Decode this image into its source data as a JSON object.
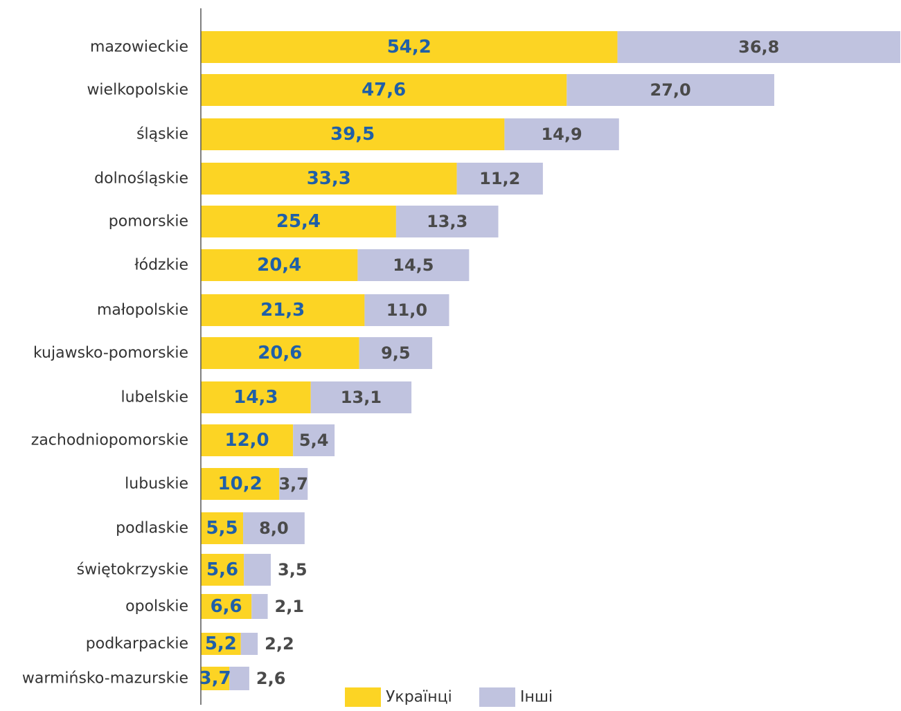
{
  "chart_data": {
    "type": "bar",
    "orientation": "horizontal",
    "stacked": true,
    "categories": [
      "mazowieckie",
      "wielkopolskie",
      "śląskie",
      "dolnośląskie",
      "pomorskie",
      "łódzkie",
      "małopolskie",
      "kujawsko-pomorskie",
      "lubelskie",
      "zachodniopomorskie",
      "lubuskie",
      "podlaskie",
      "świętokrzyskie",
      "opolskie",
      "podkarpackie",
      "warmińsko-mazurskie"
    ],
    "series": [
      {
        "name": "Українці",
        "color": "#fcd424",
        "label_color": "#1f5fa8",
        "values": [
          54.2,
          47.6,
          39.5,
          33.3,
          25.4,
          20.4,
          21.3,
          20.6,
          14.3,
          12.0,
          10.2,
          5.5,
          5.6,
          6.6,
          5.2,
          3.7
        ],
        "labels": [
          "54,2",
          "47,6",
          "39,5",
          "33,3",
          "25,4",
          "20,4",
          "21,3",
          "20,6",
          "14,3",
          "12,0",
          "10,2",
          "5,5",
          "5,6",
          "6,6",
          "5,2",
          "3,7"
        ]
      },
      {
        "name": "Інші",
        "color": "#c0c3df",
        "label_color": "#4a4a4a",
        "values": [
          36.8,
          27.0,
          14.9,
          11.2,
          13.3,
          14.5,
          11.0,
          9.5,
          13.1,
          5.4,
          3.7,
          8.0,
          3.5,
          2.1,
          2.2,
          2.6
        ],
        "labels": [
          "36,8",
          "27,0",
          "14,9",
          "11,2",
          "13,3",
          "14,5",
          "11,0",
          "9,5",
          "13,1",
          "5,4",
          "3,7",
          "8,0",
          "3,5",
          "2,1",
          "2,2",
          "2,6"
        ]
      }
    ],
    "xlim": [
      0,
      91
    ],
    "grid": false,
    "legend": "bottom",
    "title": "",
    "xlabel": "",
    "ylabel": ""
  }
}
